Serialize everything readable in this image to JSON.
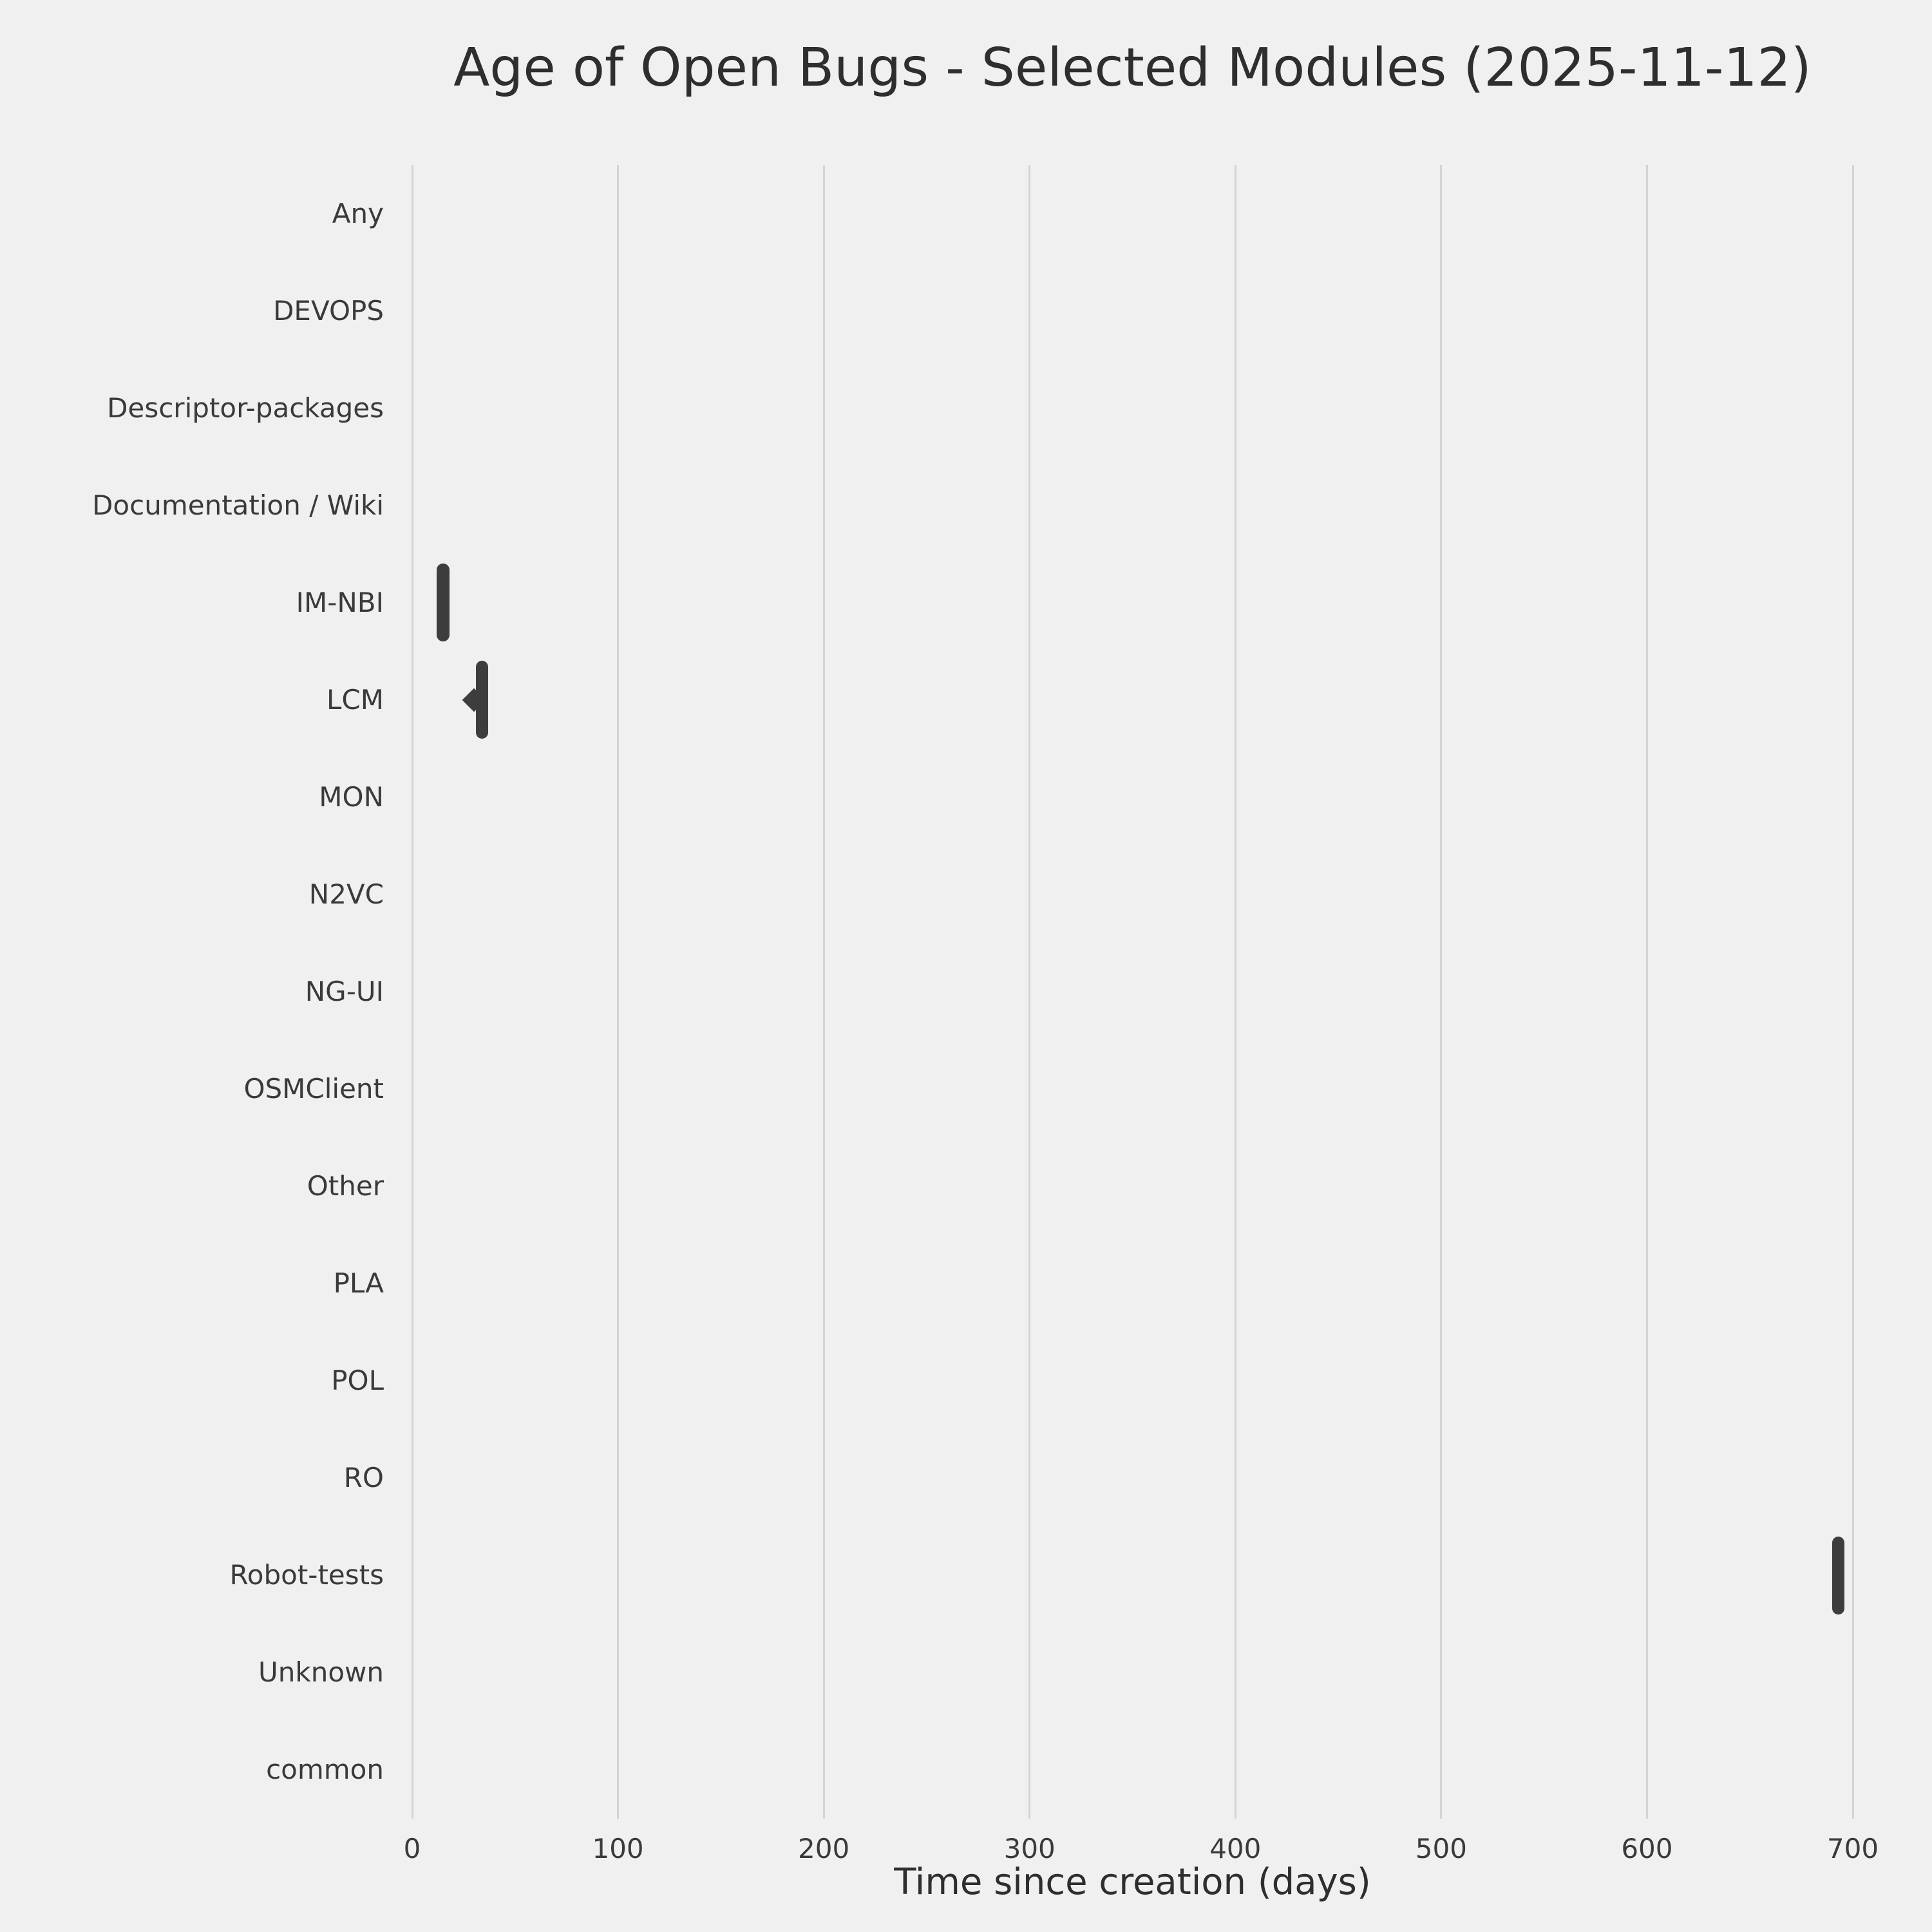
{
  "chart_data": {
    "type": "violin",
    "orientation": "horizontal",
    "title": "Age of Open Bugs - Selected Modules (2025-11-12)",
    "xlabel": "Time since creation (days)",
    "ylabel": "",
    "x_ticks": [
      0,
      100,
      200,
      300,
      400,
      500,
      600,
      700
    ],
    "xlim": [
      0,
      700
    ],
    "grid": true,
    "legend": false,
    "categories": [
      "Any",
      "DEVOPS",
      "Descriptor-packages",
      "Documentation / Wiki",
      "IM-NBI",
      "LCM",
      "MON",
      "N2VC",
      "NG-UI",
      "OSMClient",
      "Other",
      "PLA",
      "POL",
      "RO",
      "Robot-tests",
      "Unknown",
      "common"
    ],
    "violins": [
      {
        "category": "IM-NBI",
        "center_days": 15,
        "min_days": 12,
        "max_days": 18,
        "point_left": false
      },
      {
        "category": "LCM",
        "center_days": 34,
        "min_days": 31,
        "max_days": 37,
        "point_left": true
      },
      {
        "category": "Robot-tests",
        "center_days": 693,
        "min_days": 690,
        "max_days": 696,
        "point_left": false
      }
    ],
    "colors": {
      "background": "#f0f0f0",
      "gridline": "#d4d4d4",
      "violin": "#3d3d3d",
      "text": "#3a3a3a"
    }
  }
}
